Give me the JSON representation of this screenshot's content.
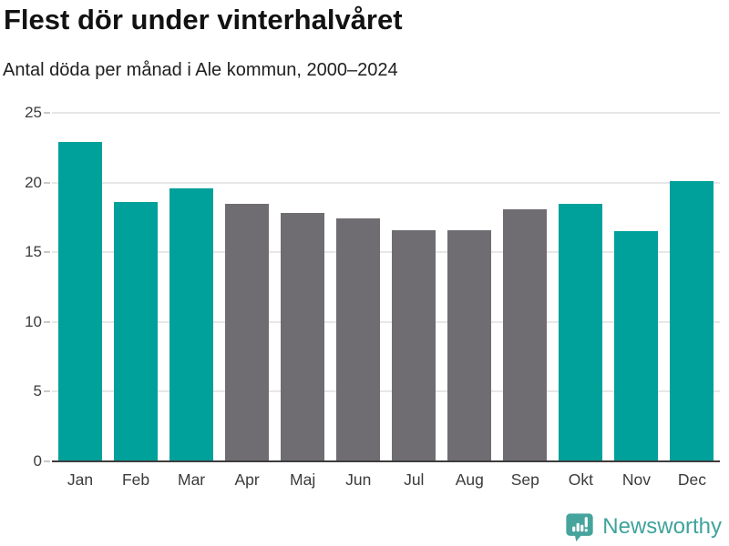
{
  "header": {
    "title": "Flest dör under vinterhalvåret",
    "subtitle": "Antal döda per månad i Ale kommun, 2000–2024"
  },
  "chart_data": {
    "type": "bar",
    "title": "Flest dör under vinterhalvåret",
    "subtitle": "Antal döda per månad i Ale kommun, 2000–2024",
    "categories": [
      "Jan",
      "Feb",
      "Mar",
      "Apr",
      "Maj",
      "Jun",
      "Jul",
      "Aug",
      "Sep",
      "Okt",
      "Nov",
      "Dec"
    ],
    "values": [
      22.9,
      18.6,
      19.6,
      18.5,
      17.8,
      17.4,
      16.6,
      16.6,
      18.1,
      18.5,
      16.5,
      20.1
    ],
    "bar_color_keys": [
      "teal",
      "teal",
      "teal",
      "gray",
      "gray",
      "gray",
      "gray",
      "gray",
      "gray",
      "teal",
      "teal",
      "teal"
    ],
    "colors": {
      "teal": "#00a09b",
      "gray": "#6f6d72"
    },
    "xlabel": "",
    "ylabel": "",
    "ylim": [
      0,
      25
    ],
    "yticks": [
      0,
      5,
      10,
      15,
      20,
      25
    ],
    "grid": "horizontal",
    "legend": "none"
  },
  "footer": {
    "brand": "Newsworthy",
    "brand_color": "#3fa39b",
    "logo_icon": "newsworthy-bubble-barchart-icon"
  }
}
